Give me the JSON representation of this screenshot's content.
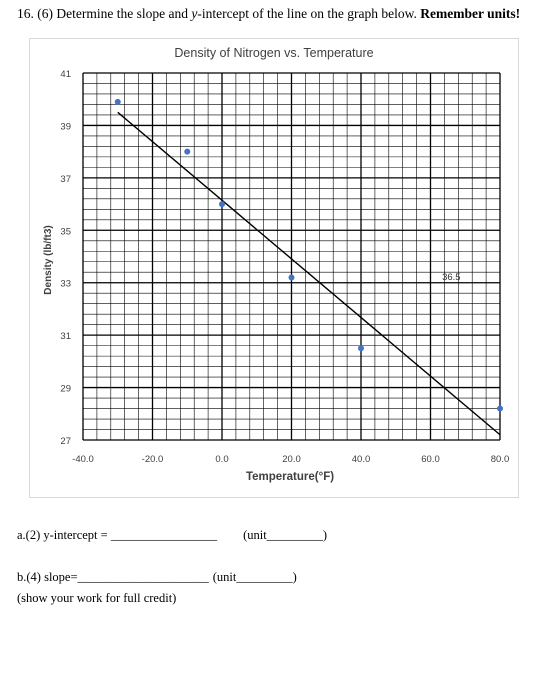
{
  "question": {
    "prefix": "16. (6) Determine the slope and ",
    "italic_var": "y",
    "middle": "-intercept of the line on the graph below.  ",
    "emphasis": "Remember units!"
  },
  "chart_data": {
    "type": "scatter",
    "title": "Density of Nitrogen vs. Temperature",
    "xlabel": "Temperature(°F)",
    "ylabel": "Density (lb/ft3)",
    "xlim": [
      -40,
      80
    ],
    "ylim": [
      27,
      41
    ],
    "x_ticks": [
      "-40.0",
      "-20.0",
      "0.0",
      "20.0",
      "40.0",
      "60.0",
      "80.0"
    ],
    "y_ticks": [
      "41",
      "39",
      "37",
      "35",
      "33",
      "31",
      "29",
      "27"
    ],
    "points": [
      {
        "x": -30,
        "y": 39.9
      },
      {
        "x": -10,
        "y": 38.0
      },
      {
        "x": 0,
        "y": 36.0
      },
      {
        "x": 20,
        "y": 33.2
      },
      {
        "x": 40,
        "y": 30.5
      },
      {
        "x": 80,
        "y": 28.2
      }
    ],
    "trend_line": {
      "x1": -30,
      "y1": 39.5,
      "x2": 80,
      "y2": 27.2
    },
    "annotation": {
      "text": "36.5",
      "x": 66,
      "y": 33.1
    },
    "grid": true,
    "color": "#4472c4"
  },
  "answers": {
    "a_label": "a.(2) y-intercept = ",
    "a_blank": "_________________",
    "a_unit": "(unit_________)",
    "b_label": "b.(4) slope=",
    "b_blank": "_____________________",
    "b_unit": "(unit_________)",
    "note": "(show your work for full credit)"
  }
}
